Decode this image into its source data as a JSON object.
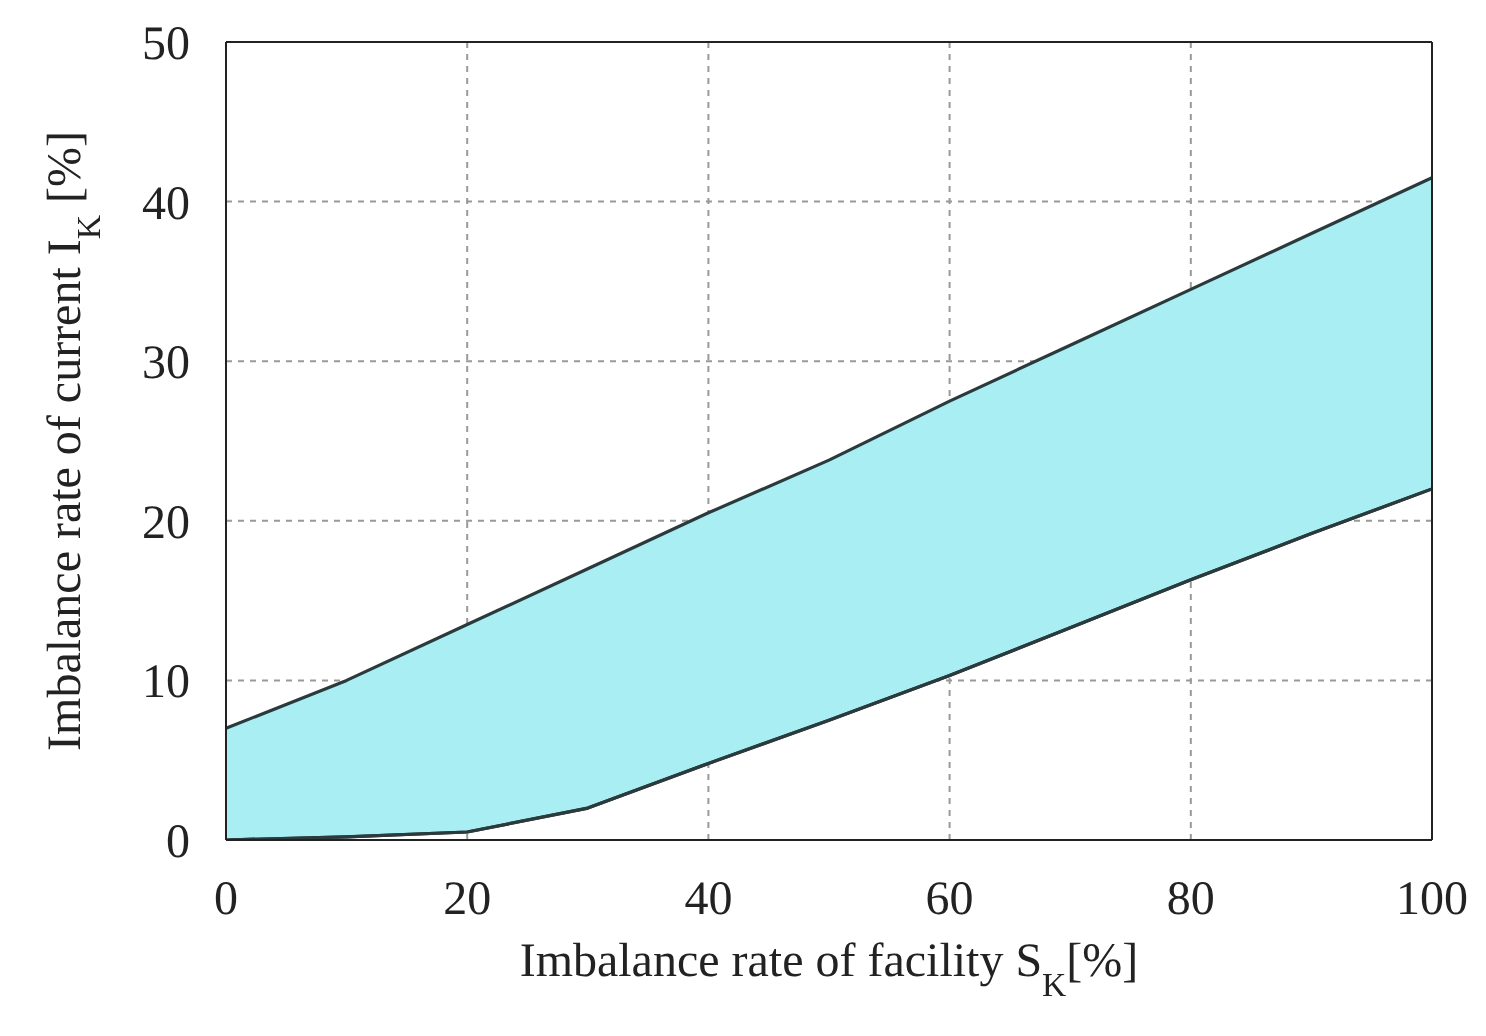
{
  "chart_data": {
    "type": "area",
    "xlabel": "Imbalance rate of facility S$_{K}$[%]",
    "ylabel": "Imbalance rate of current I$_{K}$ [%]",
    "x": [
      0,
      10,
      20,
      30,
      40,
      50,
      60,
      70,
      80,
      90,
      100
    ],
    "series": [
      {
        "type": "line",
        "color": "#2b3a3c",
        "values": [
          0,
          0.2,
          0.5,
          2,
          4.8,
          7.5,
          10.3,
          13.3,
          16.3,
          19.2,
          22
        ]
      },
      {
        "color": "#a8eef2",
        "values": [
          7,
          10,
          13.5,
          17,
          20.5,
          23.8,
          27.5,
          31,
          34.5,
          38,
          41.5
        ]
      }
    ],
    "xlim": [
      0,
      100
    ],
    "xticks": [
      0,
      20,
      40,
      60,
      80,
      100
    ],
    "ylim": [
      0,
      50
    ],
    "yticks": [
      0,
      10,
      20,
      30,
      40,
      50
    ],
    "grid": true,
    "line_style": "solid",
    "marker": "none"
  }
}
